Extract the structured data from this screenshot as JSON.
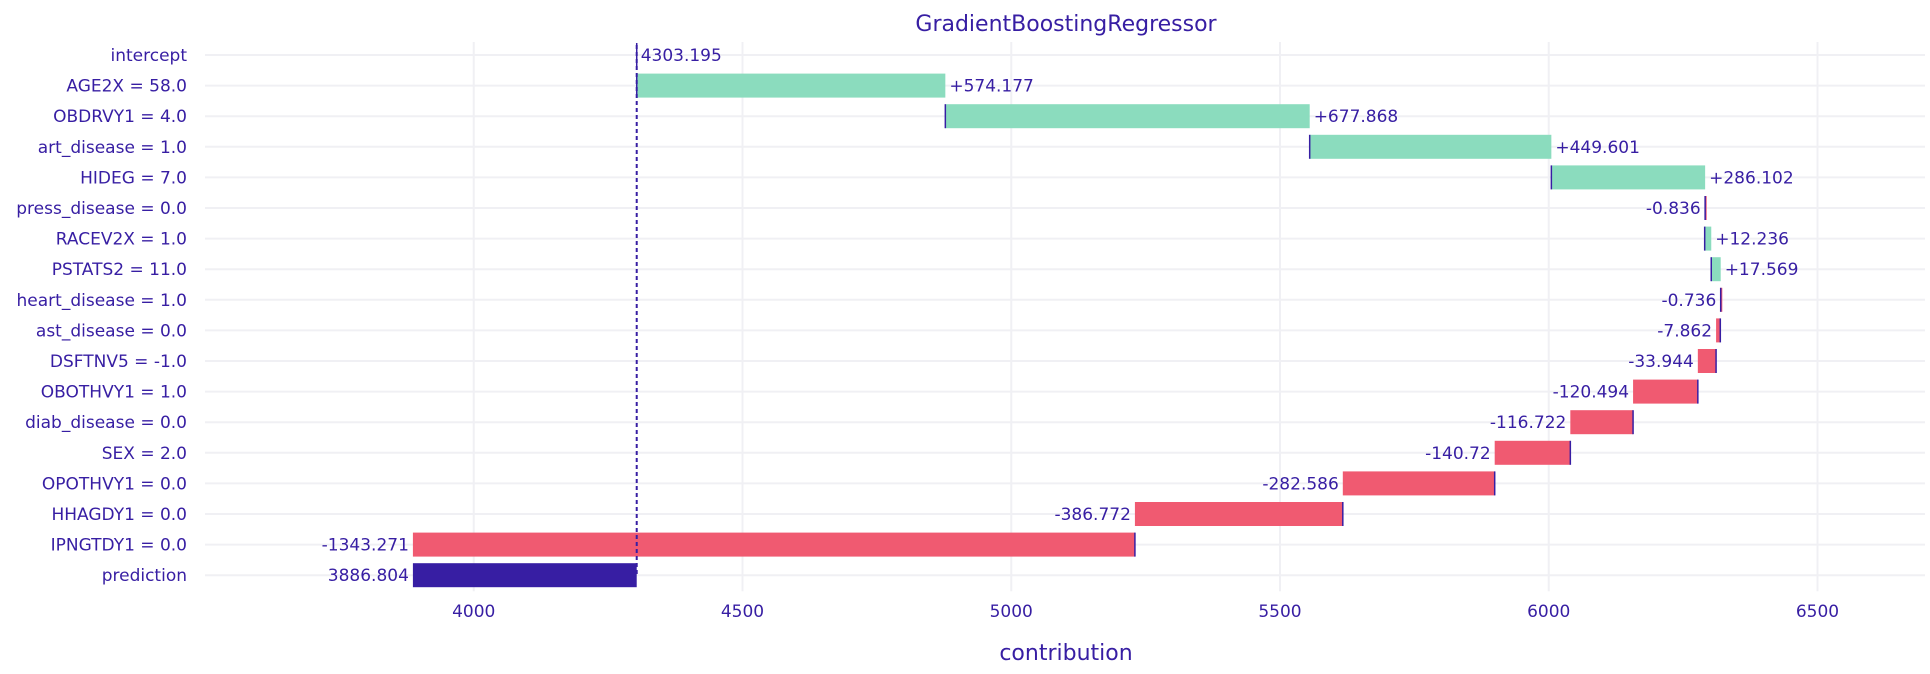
{
  "chart_data": {
    "type": "waterfall",
    "title": "GradientBoostingRegressor",
    "xlabel": "contribution",
    "ylabel": "",
    "xlim": [
      3500,
      6700
    ],
    "x_ticks": [
      4000,
      4500,
      5000,
      5500,
      6000,
      6500
    ],
    "x_tick_labels": [
      "4000",
      "4500",
      "5000",
      "5500",
      "6000",
      "6500"
    ],
    "grid": true,
    "intercept_value": 4303.195,
    "colors": {
      "positive": "#8bdcbe",
      "negative": "#f05a71",
      "prediction": "#371ea3",
      "text": "#371ea3",
      "grid": "#f0f0f4",
      "connector": "#371ea3"
    },
    "rows": [
      {
        "variable": "intercept",
        "start": 4303.195,
        "end": 4303.195,
        "label": "4303.195",
        "kind": "intercept"
      },
      {
        "variable": "AGE2X = 58.0",
        "start": 4303.195,
        "end": 4877.372,
        "label": "+574.177",
        "kind": "positive"
      },
      {
        "variable": "OBDRVY1 = 4.0",
        "start": 4877.372,
        "end": 5555.24,
        "label": "+677.868",
        "kind": "positive"
      },
      {
        "variable": "art_disease = 1.0",
        "start": 5555.24,
        "end": 6004.841,
        "label": "+449.601",
        "kind": "positive"
      },
      {
        "variable": "HIDEG = 7.0",
        "start": 6004.841,
        "end": 6290.943,
        "label": "+286.102",
        "kind": "positive"
      },
      {
        "variable": "press_disease = 0.0",
        "start": 6290.943,
        "end": 6290.107,
        "label": "-0.836",
        "kind": "negative"
      },
      {
        "variable": "RACEV2X = 1.0",
        "start": 6290.107,
        "end": 6302.343,
        "label": "+12.236",
        "kind": "positive"
      },
      {
        "variable": "PSTATS2 = 11.0",
        "start": 6302.343,
        "end": 6319.912,
        "label": "+17.569",
        "kind": "positive"
      },
      {
        "variable": "heart_disease = 1.0",
        "start": 6319.912,
        "end": 6319.176,
        "label": "-0.736",
        "kind": "negative"
      },
      {
        "variable": "ast_disease = 0.0",
        "start": 6319.176,
        "end": 6311.314,
        "label": "-7.862",
        "kind": "negative"
      },
      {
        "variable": "DSFTNV5 = -1.0",
        "start": 6311.314,
        "end": 6277.37,
        "label": "-33.944",
        "kind": "negative"
      },
      {
        "variable": "OBOTHVY1 = 1.0",
        "start": 6277.37,
        "end": 6156.876,
        "label": "-120.494",
        "kind": "negative"
      },
      {
        "variable": "diab_disease = 0.0",
        "start": 6156.876,
        "end": 6040.154,
        "label": "-116.722",
        "kind": "negative"
      },
      {
        "variable": "SEX = 2.0",
        "start": 6040.154,
        "end": 5899.434,
        "label": "-140.72",
        "kind": "negative"
      },
      {
        "variable": "OPOTHVY1 = 0.0",
        "start": 5899.434,
        "end": 5616.848,
        "label": "-282.586",
        "kind": "negative"
      },
      {
        "variable": "HHAGDY1 = 0.0",
        "start": 5616.848,
        "end": 5230.076,
        "label": "-386.772",
        "kind": "negative"
      },
      {
        "variable": "IPNGTDY1 = 0.0",
        "start": 5230.076,
        "end": 3886.805,
        "label": "-1343.271",
        "kind": "negative"
      },
      {
        "variable": "prediction",
        "start": 4303.195,
        "end": 3886.804,
        "label": "3886.804",
        "kind": "prediction"
      }
    ]
  }
}
